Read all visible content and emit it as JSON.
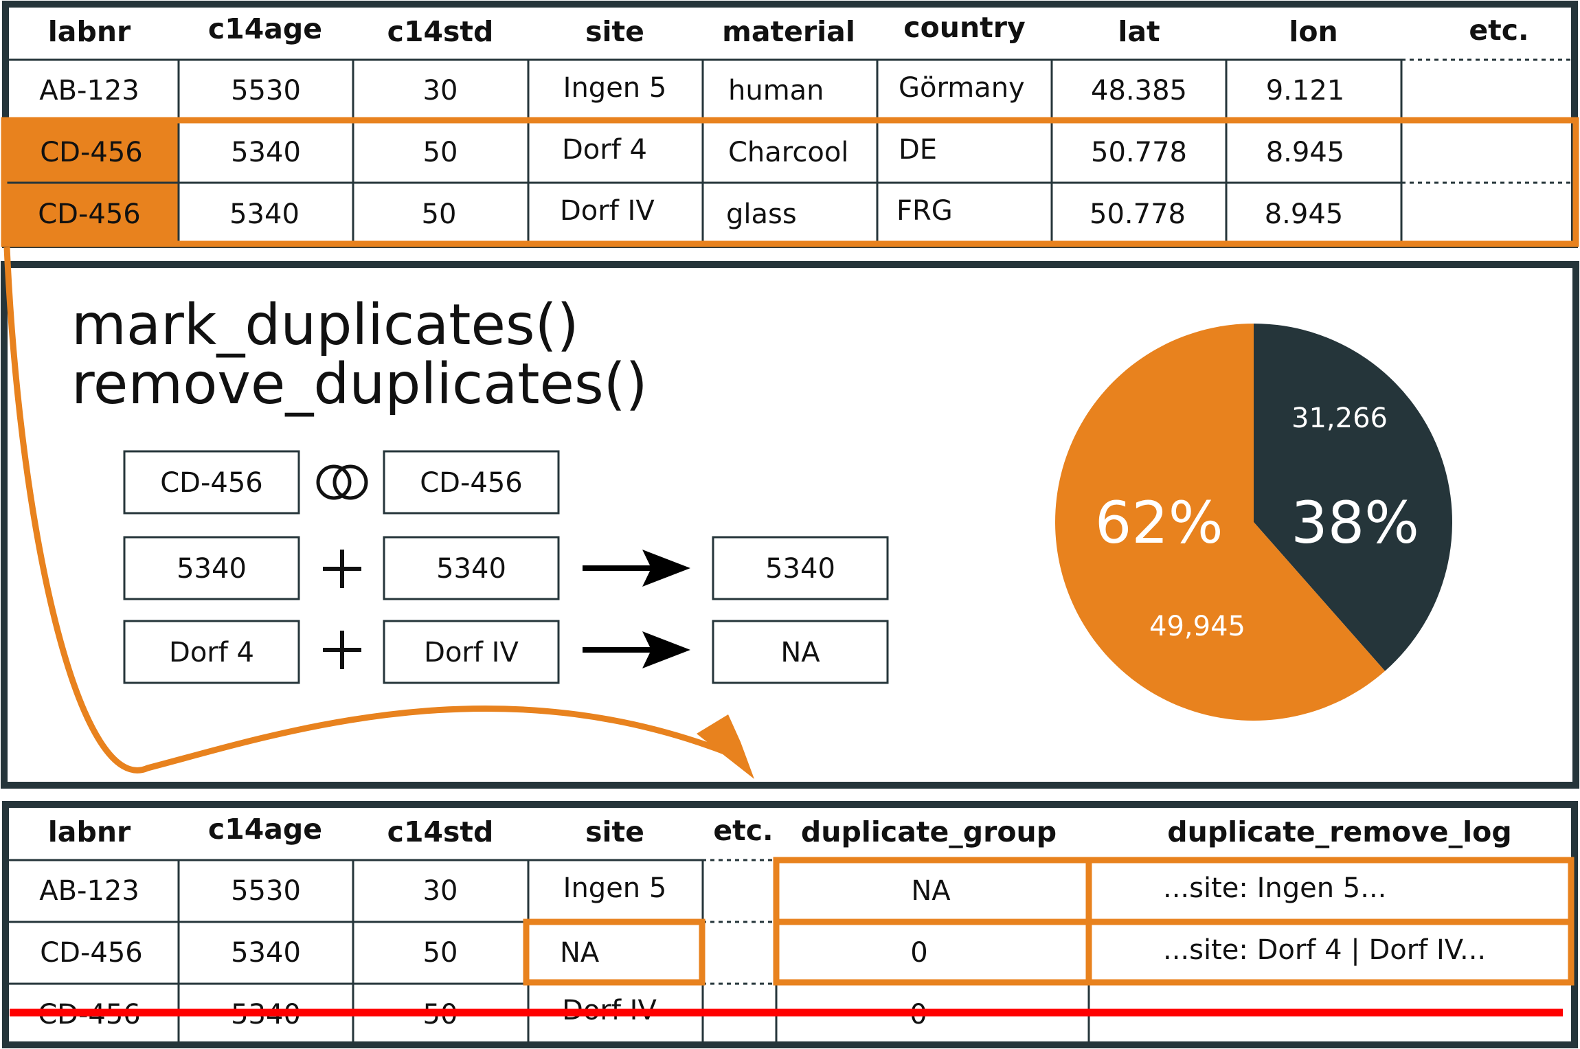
{
  "colors": {
    "accent": "#e8821e",
    "dark": "#25353a",
    "strike": "#ff0000"
  },
  "top_table": {
    "headers": [
      "labnr",
      "c14age",
      "c14std",
      "site",
      "material",
      "country",
      "lat",
      "lon",
      "etc."
    ],
    "rows": [
      [
        "AB-123",
        "5530",
        "30",
        "Ingen 5",
        "human",
        "Görmany",
        "48.385",
        "9.121"
      ],
      [
        "CD-456",
        "5340",
        "50",
        "Dorf 4",
        "Charcool",
        "DE",
        "50.778",
        "8.945"
      ],
      [
        "CD-456",
        "5340",
        "50",
        "Dorf IV",
        "glass",
        "FRG",
        "50.778",
        "8.945"
      ]
    ]
  },
  "middle": {
    "functions": [
      "mark_duplicates()",
      "remove_duplicates()"
    ],
    "compare": {
      "left": [
        "CD-456",
        "5340",
        "Dorf 4"
      ],
      "right": [
        "CD-456",
        "5340",
        "Dorf IV"
      ],
      "result": [
        "5340",
        "NA"
      ],
      "operators": [
        "overlap-rings-icon",
        "plus-icon",
        "plus-icon"
      ]
    }
  },
  "chart_data": {
    "type": "pie",
    "slices": [
      {
        "value": 31266,
        "value_label": "31,266",
        "percent_label": "38%",
        "color": "#25353a"
      },
      {
        "value": 49945,
        "value_label": "49,945",
        "percent_label": "62%",
        "color": "#e8821e"
      }
    ]
  },
  "bottom_table": {
    "headers": [
      "labnr",
      "c14age",
      "c14std",
      "site",
      "etc.",
      "duplicate_group",
      "duplicate_remove_log"
    ],
    "rows": [
      [
        "AB-123",
        "5530",
        "30",
        "Ingen 5",
        "",
        "NA",
        "...site: Ingen 5..."
      ],
      [
        "CD-456",
        "5340",
        "50",
        "NA",
        "",
        "0",
        "...site: Dorf 4 | Dorf IV..."
      ],
      [
        "CD-456",
        "5340",
        "50",
        "Dorf IV",
        "",
        "0",
        ""
      ]
    ],
    "removed_row_index": 2
  }
}
